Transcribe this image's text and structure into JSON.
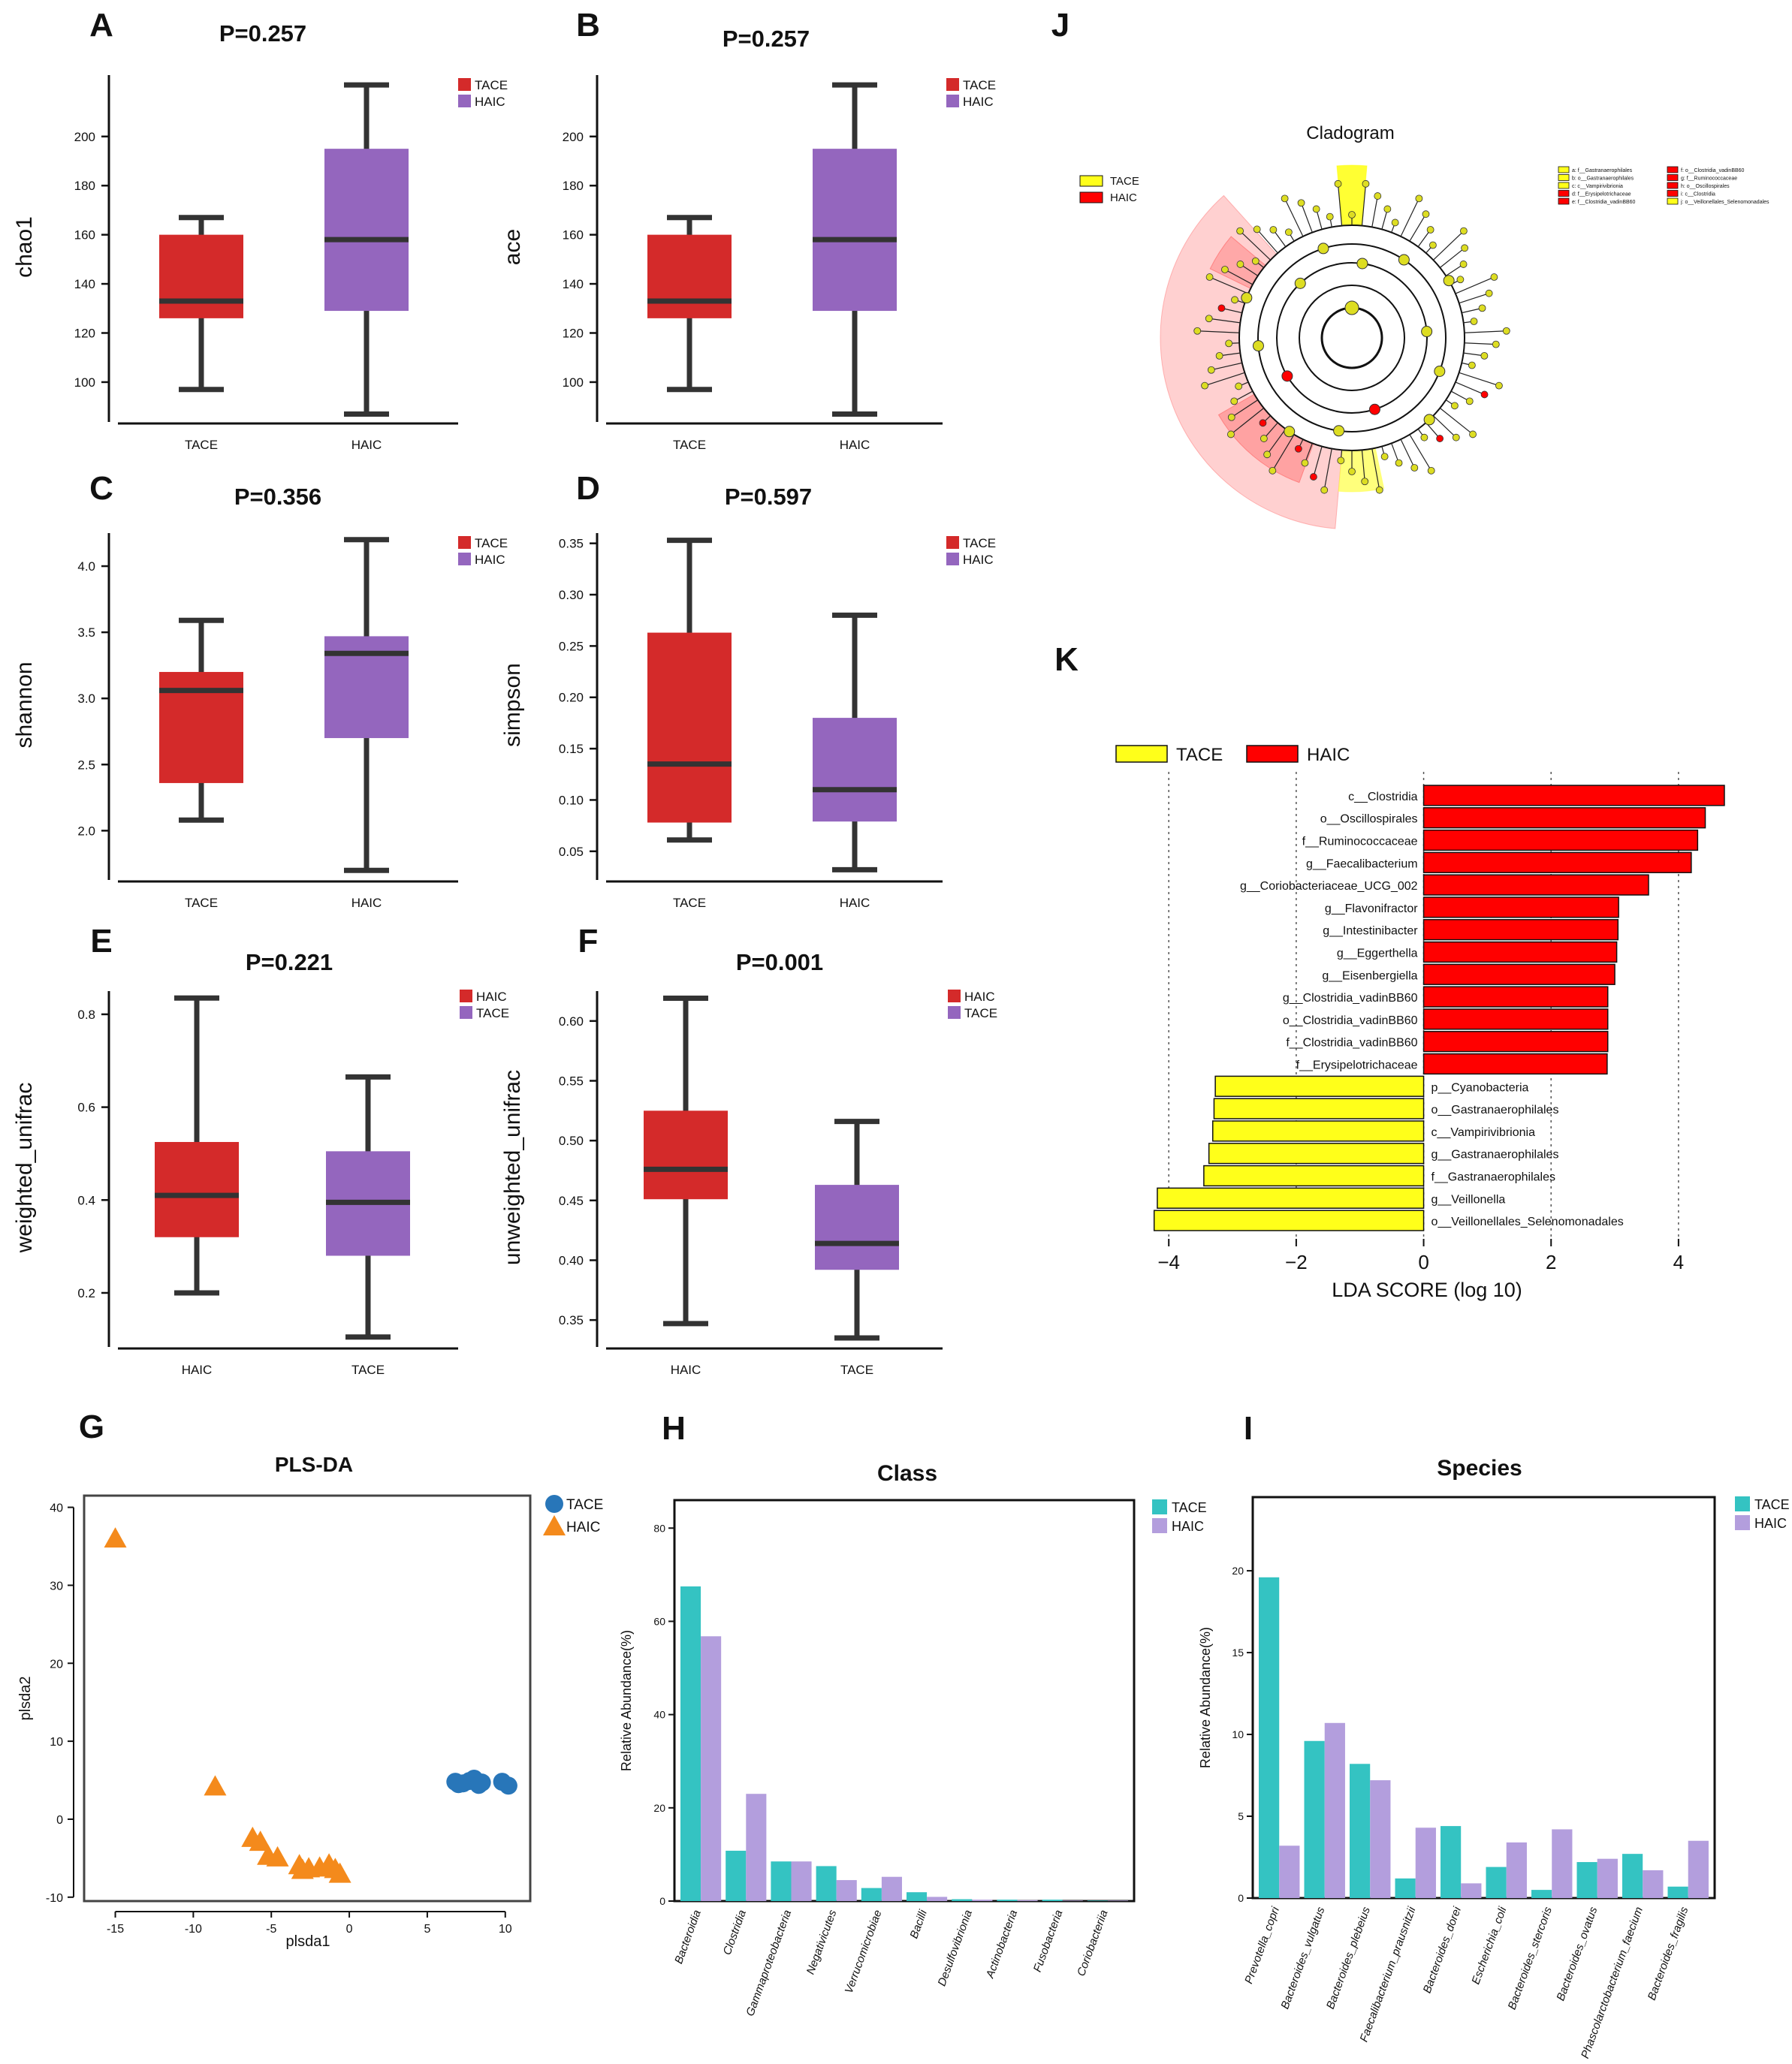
{
  "colors": {
    "tace_red": "#d42a2a",
    "haic_purple": "#9466be",
    "teal": "#34c3c2",
    "lilac": "#b39edd",
    "orange": "#f48a1c",
    "blue": "#2876b9",
    "yellow": "#ffff1a",
    "lda_red": "#ff0000",
    "whisker": "#333333"
  },
  "chart_data": [
    {
      "id": "A",
      "type": "box",
      "panel_label": "A",
      "title": "P=0.257",
      "ylabel": "chao1",
      "ylim": [
        85,
        225
      ],
      "yticks": [
        100,
        120,
        140,
        160,
        180,
        200
      ],
      "categories": [
        "TACE",
        "HAIC"
      ],
      "legend": [
        {
          "label": "TACE",
          "color": "tace_red"
        },
        {
          "label": "HAIC",
          "color": "haic_purple"
        }
      ],
      "boxes": [
        {
          "name": "TACE",
          "color": "tace_red",
          "min": 97,
          "q1": 126,
          "median": 133,
          "q3": 160,
          "max": 167
        },
        {
          "name": "HAIC",
          "color": "haic_purple",
          "min": 87,
          "q1": 129,
          "median": 158,
          "q3": 195,
          "max": 221
        }
      ]
    },
    {
      "id": "B",
      "type": "box",
      "panel_label": "B",
      "title": "P=0.257",
      "ylabel": "ace",
      "ylim": [
        85,
        225
      ],
      "yticks": [
        100,
        120,
        140,
        160,
        180,
        200
      ],
      "categories": [
        "TACE",
        "HAIC"
      ],
      "legend": [
        {
          "label": "TACE",
          "color": "tace_red"
        },
        {
          "label": "HAIC",
          "color": "haic_purple"
        }
      ],
      "boxes": [
        {
          "name": "TACE",
          "color": "tace_red",
          "min": 97,
          "q1": 126,
          "median": 133,
          "q3": 160,
          "max": 167
        },
        {
          "name": "HAIC",
          "color": "haic_purple",
          "min": 87,
          "q1": 129,
          "median": 158,
          "q3": 195,
          "max": 221
        }
      ]
    },
    {
      "id": "C",
      "type": "box",
      "panel_label": "C",
      "title": "P=0.356",
      "ylabel": "shannon",
      "ylim": [
        1.65,
        4.25
      ],
      "yticks": [
        2.0,
        2.5,
        3.0,
        3.5,
        4.0
      ],
      "tick_decimals": 1,
      "categories": [
        "TACE",
        "HAIC"
      ],
      "legend": [
        {
          "label": "TACE",
          "color": "tace_red"
        },
        {
          "label": "HAIC",
          "color": "haic_purple"
        }
      ],
      "boxes": [
        {
          "name": "TACE",
          "color": "tace_red",
          "min": 2.08,
          "q1": 2.36,
          "median": 3.06,
          "q3": 3.2,
          "max": 3.59
        },
        {
          "name": "HAIC",
          "color": "haic_purple",
          "min": 1.7,
          "q1": 2.7,
          "median": 3.34,
          "q3": 3.47,
          "max": 4.2
        }
      ]
    },
    {
      "id": "D",
      "type": "box",
      "panel_label": "D",
      "title": "P=0.597",
      "ylabel": "simpson",
      "ylim": [
        0.025,
        0.36
      ],
      "yticks": [
        0.05,
        0.1,
        0.15,
        0.2,
        0.25,
        0.3,
        0.35
      ],
      "tick_decimals": 2,
      "categories": [
        "TACE",
        "HAIC"
      ],
      "legend": [
        {
          "label": "TACE",
          "color": "tace_red"
        },
        {
          "label": "HAIC",
          "color": "haic_purple"
        }
      ],
      "boxes": [
        {
          "name": "TACE",
          "color": "tace_red",
          "min": 0.061,
          "q1": 0.078,
          "median": 0.135,
          "q3": 0.263,
          "max": 0.353
        },
        {
          "name": "HAIC",
          "color": "haic_purple",
          "min": 0.032,
          "q1": 0.079,
          "median": 0.11,
          "q3": 0.18,
          "max": 0.28
        }
      ]
    },
    {
      "id": "E",
      "type": "box",
      "panel_label": "E",
      "title": "P=0.221",
      "ylabel": "weighted_unifrac",
      "ylim": [
        0.09,
        0.85
      ],
      "yticks": [
        0.2,
        0.4,
        0.6,
        0.8
      ],
      "tick_decimals": 1,
      "categories": [
        "HAIC",
        "TACE"
      ],
      "legend": [
        {
          "label": "HAIC",
          "color": "tace_red"
        },
        {
          "label": "TACE",
          "color": "haic_purple"
        }
      ],
      "boxes": [
        {
          "name": "HAIC",
          "color": "tace_red",
          "min": 0.2,
          "q1": 0.32,
          "median": 0.41,
          "q3": 0.525,
          "max": 0.835
        },
        {
          "name": "TACE",
          "color": "haic_purple",
          "min": 0.105,
          "q1": 0.28,
          "median": 0.395,
          "q3": 0.505,
          "max": 0.665
        }
      ]
    },
    {
      "id": "F",
      "type": "box",
      "panel_label": "F",
      "title": "P=0.001",
      "ylabel": "unweighted_unifrac",
      "ylim": [
        0.33,
        0.625
      ],
      "yticks": [
        0.35,
        0.4,
        0.45,
        0.5,
        0.55,
        0.6
      ],
      "tick_decimals": 2,
      "categories": [
        "HAIC",
        "TACE"
      ],
      "legend": [
        {
          "label": "HAIC",
          "color": "tace_red"
        },
        {
          "label": "TACE",
          "color": "haic_purple"
        }
      ],
      "boxes": [
        {
          "name": "HAIC",
          "color": "tace_red",
          "min": 0.347,
          "q1": 0.451,
          "median": 0.476,
          "q3": 0.525,
          "max": 0.619
        },
        {
          "name": "TACE",
          "color": "haic_purple",
          "min": 0.335,
          "q1": 0.392,
          "median": 0.414,
          "q3": 0.463,
          "max": 0.516
        }
      ]
    },
    {
      "id": "G",
      "type": "scatter",
      "panel_label": "G",
      "title": "PLS-DA",
      "xlabel": "plsda1",
      "ylabel": "plsda2",
      "xlim": [
        -17,
        11.6
      ],
      "ylim": [
        -10.5,
        41.5
      ],
      "xticks": [
        -15,
        -10,
        -5,
        0,
        5,
        10
      ],
      "yticks": [
        -10,
        0,
        10,
        20,
        30,
        40
      ],
      "legend": [
        {
          "label": "TACE",
          "color": "blue",
          "marker": "circle"
        },
        {
          "label": "HAIC",
          "color": "orange",
          "marker": "triangle"
        }
      ],
      "series": [
        {
          "name": "TACE",
          "color": "blue",
          "marker": "circle",
          "points": [
            [
              6.8,
              4.8
            ],
            [
              7.3,
              4.6
            ],
            [
              7.7,
              4.9
            ],
            [
              8.0,
              5.2
            ],
            [
              8.3,
              4.4
            ],
            [
              9.8,
              4.8
            ],
            [
              10.2,
              4.3
            ],
            [
              7.0,
              4.5
            ],
            [
              8.5,
              4.7
            ]
          ]
        },
        {
          "name": "HAIC",
          "color": "orange",
          "marker": "triangle",
          "points": [
            [
              -15.0,
              36.0
            ],
            [
              -8.6,
              4.2
            ],
            [
              -6.2,
              -2.4
            ],
            [
              -5.7,
              -2.9
            ],
            [
              -5.2,
              -4.7
            ],
            [
              -4.6,
              -4.9
            ],
            [
              -3.2,
              -5.9
            ],
            [
              -2.6,
              -6.3
            ],
            [
              -1.9,
              -6.2
            ],
            [
              -1.3,
              -5.8
            ],
            [
              -0.9,
              -6.4
            ],
            [
              -0.6,
              -7.0
            ],
            [
              -3.0,
              -6.5
            ]
          ]
        }
      ]
    },
    {
      "id": "H",
      "type": "bar",
      "panel_label": "H",
      "title": "Class",
      "ylabel": "Relative Abundance(%)",
      "ylim": [
        0,
        86
      ],
      "yticks": [
        0,
        20,
        40,
        60,
        80
      ],
      "categories": [
        "Bacteroidia",
        "Clostridia",
        "Gammaproteobacteria",
        "Negativicutes",
        "Verrucomicrobiae",
        "Bacilli",
        "Desulfovibrionia",
        "Actinobacteria",
        "Fusobacteria",
        "Coriobacteriia"
      ],
      "legend": [
        {
          "label": "TACE",
          "color": "teal"
        },
        {
          "label": "HAIC",
          "color": "lilac"
        }
      ],
      "series": [
        {
          "name": "TACE",
          "color": "teal",
          "values": [
            67.5,
            10.8,
            8.5,
            7.5,
            2.8,
            1.9,
            0.4,
            0.3,
            0.3,
            0.1
          ]
        },
        {
          "name": "HAIC",
          "color": "lilac",
          "values": [
            56.8,
            23.0,
            8.5,
            4.5,
            5.2,
            0.9,
            0.3,
            0.2,
            0.1,
            0.1
          ]
        }
      ]
    },
    {
      "id": "I",
      "type": "bar",
      "panel_label": "I",
      "title": "Species",
      "ylabel": "Relative Abundance(%)",
      "ylim": [
        0,
        24.5
      ],
      "yticks": [
        0,
        5,
        10,
        15,
        20
      ],
      "categories": [
        "Prevotella_copri",
        "Bacteroides_vulgatus",
        "Bacteroides_plebeius",
        "Faecalibacterium_prausnitzii",
        "Bacteroides_dorei",
        "Escherichia_coli",
        "Bacteroides_stercoris",
        "Bacteroides_ovatus",
        "Phascolarctobacterium_faecium",
        "Bacteroides_fragilis"
      ],
      "legend": [
        {
          "label": "TACE",
          "color": "teal"
        },
        {
          "label": "HAIC",
          "color": "lilac"
        }
      ],
      "series": [
        {
          "name": "TACE",
          "color": "teal",
          "values": [
            19.6,
            9.6,
            8.2,
            1.2,
            4.4,
            1.9,
            0.5,
            2.2,
            2.7,
            0.7
          ]
        },
        {
          "name": "HAIC",
          "color": "lilac",
          "values": [
            3.2,
            10.7,
            7.2,
            4.3,
            0.9,
            3.4,
            4.2,
            2.4,
            1.7,
            3.5
          ]
        }
      ]
    },
    {
      "id": "K",
      "type": "bar_horizontal",
      "panel_label": "K",
      "xlabel": "LDA SCORE (log 10)",
      "xlim": [
        -4.25,
        4.85
      ],
      "xticks": [
        -4,
        -2,
        0,
        2,
        4
      ],
      "legend": [
        {
          "label": "TACE",
          "color": "yellow"
        },
        {
          "label": "HAIC",
          "color": "lda_red"
        }
      ],
      "bars": [
        {
          "label": "c__Clostridia",
          "value": 4.72,
          "group": "HAIC"
        },
        {
          "label": "o__Oscillospirales",
          "value": 4.42,
          "group": "HAIC"
        },
        {
          "label": "f__Ruminococcaceae",
          "value": 4.3,
          "group": "HAIC"
        },
        {
          "label": "g__Faecalibacterium",
          "value": 4.2,
          "group": "HAIC"
        },
        {
          "label": "g__Coriobacteriaceae_UCG_002",
          "value": 3.53,
          "group": "HAIC"
        },
        {
          "label": "g__Flavonifractor",
          "value": 3.06,
          "group": "HAIC"
        },
        {
          "label": "g__Intestinibacter",
          "value": 3.05,
          "group": "HAIC"
        },
        {
          "label": "g__Eggerthella",
          "value": 3.03,
          "group": "HAIC"
        },
        {
          "label": "g__Eisenbergiella",
          "value": 3.0,
          "group": "HAIC"
        },
        {
          "label": "g__Clostridia_vadinBB60",
          "value": 2.89,
          "group": "HAIC"
        },
        {
          "label": "o__Clostridia_vadinBB60",
          "value": 2.89,
          "group": "HAIC"
        },
        {
          "label": "f__Clostridia_vadinBB60",
          "value": 2.89,
          "group": "HAIC"
        },
        {
          "label": "f__Erysipelotrichaceae",
          "value": 2.88,
          "group": "HAIC"
        },
        {
          "label": "p__Cyanobacteria",
          "value": -3.27,
          "group": "TACE"
        },
        {
          "label": "o__Gastranaerophilales",
          "value": -3.29,
          "group": "TACE"
        },
        {
          "label": "c__Vampirivibrionia",
          "value": -3.31,
          "group": "TACE"
        },
        {
          "label": "g__Gastranaerophilales",
          "value": -3.37,
          "group": "TACE"
        },
        {
          "label": "f__Gastranaerophilales",
          "value": -3.45,
          "group": "TACE"
        },
        {
          "label": "g__Veillonella",
          "value": -4.18,
          "group": "TACE"
        },
        {
          "label": "o__Veillonellales_Selenomonadales",
          "value": -4.23,
          "group": "TACE"
        }
      ]
    },
    {
      "id": "J",
      "type": "cladogram",
      "panel_label": "J",
      "title": "Cladogram",
      "legend": [
        {
          "label": "TACE",
          "color": "yellow"
        },
        {
          "label": "HAIC",
          "color": "lda_red"
        }
      ],
      "key_left": [
        {
          "text": "a: f__Gastranaerophilales",
          "color": "yellow"
        },
        {
          "text": "b: o__Gastranaerophilales",
          "color": "yellow"
        },
        {
          "text": "c: c__Vampirivibrionia",
          "color": "yellow"
        },
        {
          "text": "d: f__Erysipelotrichaceae",
          "color": "lda_red"
        },
        {
          "text": "e: f__Clostridia_vadinBB60",
          "color": "lda_red"
        }
      ],
      "key_right": [
        {
          "text": "f: o__Clostridia_vadinBB60",
          "color": "lda_red"
        },
        {
          "text": "g: f__Ruminococcaceae",
          "color": "lda_red"
        },
        {
          "text": "h: o__Oscillospirales",
          "color": "lda_red"
        },
        {
          "text": "i: c__Clostridia",
          "color": "lda_red"
        },
        {
          "text": "j: o__Veillonellales_Selenomonadales",
          "color": "yellow"
        }
      ]
    }
  ]
}
